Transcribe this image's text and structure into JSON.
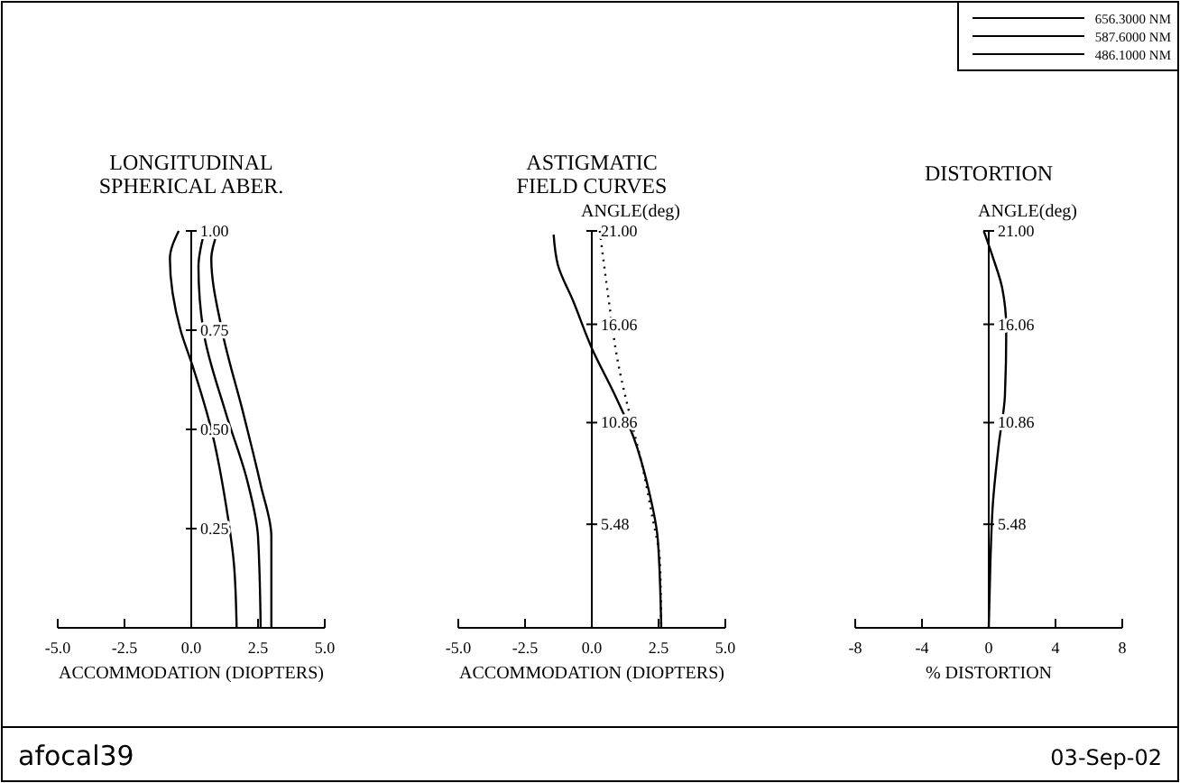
{
  "chart_data": [
    {
      "type": "line",
      "title": "LONGITUDINAL\nSPHERICAL ABER.",
      "xlabel": "ACCOMMODATION (DIOPTERS)",
      "xlim": [
        -5,
        5
      ],
      "xticks": [
        {
          "value": -5,
          "label": "-5.0"
        },
        {
          "value": -2.5,
          "label": "-2.5"
        },
        {
          "value": 0,
          "label": "0.0"
        },
        {
          "value": 2.5,
          "label": "2.5"
        },
        {
          "value": 5,
          "label": "5.0"
        }
      ],
      "ylim": [
        0,
        1
      ],
      "yticks": [
        0.25,
        {
          "value": 0.5,
          "label": "0.50"
        },
        0.75,
        {
          "value": 1,
          "label": "1.00"
        }
      ],
      "legend": "top right",
      "annotations": [
        "afocal39"
      ],
      "series": [
        {
          "name": "656.3000 NM",
          "color": "#000000",
          "x": [
            -0.47,
            -0.8,
            -0.4,
            0.05,
            0.75,
            1.3,
            1.6,
            1.7
          ],
          "values": [
            1,
            0.93,
            0.75,
            0.66,
            0.5,
            0.31,
            0.16,
            0
          ]
        },
        {
          "name": "587.6000 NM",
          "color": "#000000",
          "x": [
            0.5,
            0.27,
            0.45,
            1.3,
            2.1,
            2.5,
            2.6
          ],
          "values": [
            1,
            0.91,
            0.75,
            0.54,
            0.37,
            0.23,
            0
          ]
        },
        {
          "name": "486.1000 NM",
          "color": "#000000",
          "x": [
            1.0,
            0.75,
            1.15,
            1.95,
            2.6,
            3.0,
            3.0
          ],
          "values": [
            1,
            0.93,
            0.75,
            0.54,
            0.36,
            0.23,
            0
          ]
        }
      ]
    },
    {
      "type": "line",
      "title": "ASTIGMATIC\nFIELD CURVES",
      "ylabel": "ANGLE(deg)",
      "xlabel": "ACCOMMODATION (DIOPTERS)",
      "xlim": [
        -5,
        5
      ],
      "xticks": [
        {
          "value": -5,
          "label": "-5.0"
        },
        {
          "value": -2.5,
          "label": "-2.5"
        },
        {
          "value": 0,
          "label": "0.0"
        },
        {
          "value": 2.5,
          "label": "2.5"
        },
        {
          "value": 5,
          "label": "5.0"
        }
      ],
      "ylim": [
        0,
        21
      ],
      "yticks": [
        5.48,
        10.86,
        16.06,
        {
          "value": 21,
          "label": "21.00"
        }
      ],
      "series": [
        {
          "color": "#000000",
          "line_style": "solid",
          "x": [
            -1.43,
            -1.27,
            -0.7,
            0,
            0.87,
            1.56,
            2.13,
            2.47,
            2.6
          ],
          "values": [
            20.8,
            19.2,
            17.3,
            14.8,
            12.3,
            10.1,
            7.3,
            4.7,
            0
          ]
        },
        {
          "color": "#000000",
          "line_style": "dotted",
          "x": [
            0.3,
            0.6,
            1.0,
            1.45,
            1.9,
            2.25,
            2.55,
            2.6
          ],
          "values": [
            21,
            17.7,
            13.9,
            11.1,
            8.5,
            6,
            3.5,
            0
          ]
        }
      ]
    },
    {
      "type": "line",
      "title": "DISTORTION",
      "ylabel": "ANGLE(deg)",
      "xlabel": "% DISTORTION",
      "xlim": [
        -8,
        8
      ],
      "xticks": [
        -8,
        -4,
        0,
        4,
        8
      ],
      "ylim": [
        0,
        21
      ],
      "yticks": [
        5.48,
        10.86,
        16.06,
        {
          "value": 21,
          "label": "21.00"
        }
      ],
      "annotations": [
        "03-Sep-02"
      ],
      "series": [
        {
          "color": "#000000",
          "x": [
            -0.3,
            0.25,
            0.8,
            1.05,
            0.97,
            0.6,
            0.25,
            0.1,
            0
          ],
          "values": [
            21,
            19.6,
            18,
            15.8,
            12.3,
            9.7,
            6.6,
            3.5,
            0
          ]
        }
      ]
    }
  ]
}
